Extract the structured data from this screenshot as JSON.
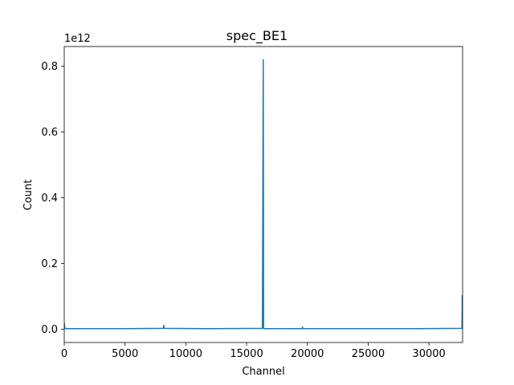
{
  "chart_data": {
    "type": "line",
    "title": "spec_BE1",
    "xlabel": "Channel",
    "ylabel": "Count",
    "offset_text": "1e12",
    "xlim": [
      0,
      32768
    ],
    "ylim": [
      -0.04,
      0.86
    ],
    "y_scale_note": "values in units of 1e12",
    "x_ticks": [
      0,
      5000,
      10000,
      15000,
      20000,
      25000,
      30000
    ],
    "x_tick_labels": [
      "0",
      "5000",
      "10000",
      "15000",
      "20000",
      "25000",
      "30000"
    ],
    "y_ticks": [
      0.0,
      0.2,
      0.4,
      0.6,
      0.8
    ],
    "y_tick_labels": [
      "0.0",
      "0.2",
      "0.4",
      "0.6",
      "0.8"
    ],
    "grid": false,
    "legend": "none",
    "series_color": "#1f77b4",
    "series": [
      {
        "x": [
          0,
          40,
          80,
          120,
          2000,
          5000,
          8150,
          8190,
          8230,
          12000,
          16300,
          16370,
          16384,
          16398,
          16460,
          19560,
          19600,
          19640,
          24000,
          29000,
          32720,
          32740,
          32768
        ],
        "values": [
          0.02,
          0.005,
          0.003,
          0.002,
          0.002,
          0.002,
          0.003,
          0.012,
          0.003,
          0.002,
          0.003,
          0.82,
          0.5,
          0.003,
          0.002,
          0.002,
          0.007,
          0.002,
          0.002,
          0.002,
          0.003,
          0.103,
          0.003
        ]
      }
    ]
  }
}
